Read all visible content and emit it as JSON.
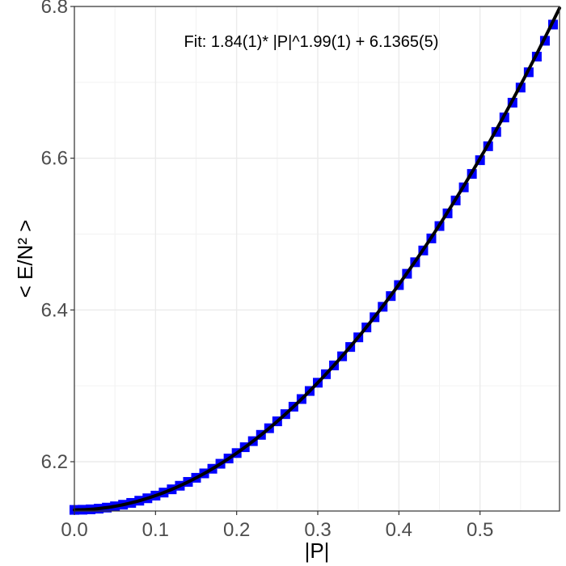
{
  "chart_data": {
    "type": "scatter",
    "title": "",
    "xlabel": "|P|",
    "ylabel": "< E/N² >",
    "xlim": [
      0,
      0.598
    ],
    "ylim": [
      6.135,
      6.8
    ],
    "xticks": [
      0.0,
      0.1,
      0.2,
      0.3,
      0.4,
      0.5
    ],
    "xtick_labels": [
      "0.0",
      "0.1",
      "0.2",
      "0.3",
      "0.4",
      "0.5"
    ],
    "yticks": [
      6.2,
      6.4,
      6.6,
      6.8
    ],
    "ytick_labels": [
      "6.2",
      "6.4",
      "6.6",
      "6.8"
    ],
    "grid": true,
    "annotation": "Fit: 1.84(1)* |P|^1.99(1) + 6.1365(5)",
    "fit": {
      "a": 1.84,
      "b": 1.99,
      "c": 6.1365
    },
    "series": [
      {
        "color": "#0000ff",
        "points": [
          [
            0.0,
            6.1365
          ],
          [
            0.01,
            6.1367
          ],
          [
            0.02,
            6.1372
          ],
          [
            0.03,
            6.1381
          ],
          [
            0.04,
            6.1395
          ],
          [
            0.05,
            6.1412
          ],
          [
            0.06,
            6.1433
          ],
          [
            0.07,
            6.1457
          ],
          [
            0.08,
            6.1486
          ],
          [
            0.09,
            6.1518
          ],
          [
            0.1,
            6.1553
          ],
          [
            0.11,
            6.1593
          ],
          [
            0.12,
            6.1636
          ],
          [
            0.13,
            6.1683
          ],
          [
            0.14,
            6.1734
          ],
          [
            0.15,
            6.1788
          ],
          [
            0.16,
            6.1846
          ],
          [
            0.17,
            6.1907
          ],
          [
            0.18,
            6.1973
          ],
          [
            0.19,
            6.2042
          ],
          [
            0.2,
            6.2114
          ],
          [
            0.21,
            6.2191
          ],
          [
            0.22,
            6.2271
          ],
          [
            0.23,
            6.2354
          ],
          [
            0.24,
            6.2441
          ],
          [
            0.25,
            6.2532
          ],
          [
            0.26,
            6.2627
          ],
          [
            0.27,
            6.2725
          ],
          [
            0.28,
            6.2826
          ],
          [
            0.29,
            6.2932
          ],
          [
            0.3,
            6.3041
          ],
          [
            0.31,
            6.3153
          ],
          [
            0.32,
            6.3269
          ],
          [
            0.33,
            6.3389
          ],
          [
            0.34,
            6.3512
          ],
          [
            0.35,
            6.3639
          ],
          [
            0.36,
            6.377
          ],
          [
            0.37,
            6.3904
          ],
          [
            0.38,
            6.4042
          ],
          [
            0.39,
            6.4183
          ],
          [
            0.4,
            6.4328
          ],
          [
            0.41,
            6.4477
          ],
          [
            0.42,
            6.4629
          ],
          [
            0.43,
            6.4784
          ],
          [
            0.44,
            6.4943
          ],
          [
            0.45,
            6.5106
          ],
          [
            0.46,
            6.5273
          ],
          [
            0.47,
            6.5443
          ],
          [
            0.48,
            6.5616
          ],
          [
            0.49,
            6.5793
          ],
          [
            0.5,
            6.5974
          ],
          [
            0.51,
            6.6158
          ],
          [
            0.52,
            6.6346
          ],
          [
            0.53,
            6.6537
          ],
          [
            0.54,
            6.6732
          ],
          [
            0.55,
            6.6931
          ],
          [
            0.56,
            6.7133
          ],
          [
            0.57,
            6.7339
          ],
          [
            0.58,
            6.7548
          ],
          [
            0.59,
            6.7761
          ]
        ]
      }
    ]
  }
}
